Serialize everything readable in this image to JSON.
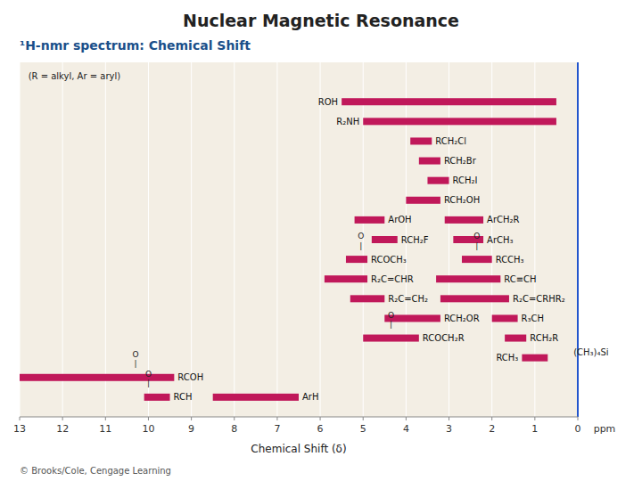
{
  "chart_data": {
    "type": "bar",
    "orientation": "horizontal",
    "title": "Nuclear Magnetic Resonance",
    "subtitle": "¹H-nmr spectrum: Chemical Shift",
    "xlabel": "Chemical Shift (δ)",
    "x_unit": "ppm",
    "source": "© Brooks/Cole, Cengage Learning",
    "color": "#c0185a",
    "grid": true,
    "xlim": [
      13,
      0
    ],
    "xticks": [
      0,
      1,
      2,
      3,
      4,
      5,
      6,
      7,
      8,
      9,
      10,
      11,
      12,
      13
    ],
    "ylim": [
      3,
      21
    ],
    "categories": [
      "ROH",
      "R₂NH",
      "RCH₂Cl",
      "RCH₂Br",
      "RCH₂I",
      "RCH₂OH",
      "ArOH",
      "RCH₂F",
      "ArCH₂R",
      "ArCH₃",
      "RCOCH₃",
      "RCCH₃",
      "R₂C=CHR",
      "RC≡CH",
      "R₂C=CH₂",
      "R₂C=CRHR₂",
      "RCH₂OR",
      "R₃CH",
      "RCOCH₂R",
      "RCH₂R",
      "RCH₃",
      "RCOH",
      "RCH",
      "ArH"
    ],
    "values": [
      [
        0.5,
        5.5
      ],
      [
        0.5,
        5.0
      ],
      [
        3.4,
        3.9
      ],
      [
        3.2,
        3.7
      ],
      [
        3.0,
        3.5
      ],
      [
        3.2,
        4.0
      ],
      [
        4.5,
        5.2
      ],
      [
        4.2,
        4.8
      ],
      [
        2.2,
        3.1
      ],
      [
        2.2,
        2.9
      ],
      [
        4.9,
        5.4
      ],
      [
        2.0,
        2.7
      ],
      [
        4.9,
        5.9
      ],
      [
        1.8,
        3.3
      ],
      [
        4.5,
        5.3
      ],
      [
        1.6,
        3.2
      ],
      [
        3.2,
        4.5
      ],
      [
        1.4,
        2.0
      ],
      [
        3.7,
        5.0
      ],
      [
        1.2,
        1.7
      ],
      [
        0.7,
        1.3
      ],
      [
        9.4,
        13.0
      ],
      [
        9.5,
        10.1
      ],
      [
        6.5,
        8.5
      ]
    ],
    "y": [
      19,
      18,
      17,
      16,
      15,
      14,
      13,
      12,
      13,
      12,
      11,
      11,
      10,
      10,
      9,
      9,
      8,
      8,
      7,
      7,
      6,
      5,
      4,
      4
    ],
    "vlines": [
      {
        "x": 0,
        "color": "#2255cc"
      }
    ],
    "annotations": [
      {
        "text": "(R = alkyl, Ar = aryl)",
        "x": 12.8,
        "y": 20.3
      },
      {
        "text": "(CH₃)₄Si",
        "x": 0.1,
        "y": 6.3
      },
      {
        "text": "O",
        "x": 10.3,
        "y": 5.95
      },
      {
        "text": "|",
        "x": 10.3,
        "y": 5.65
      },
      {
        "text": "O",
        "x": 10.0,
        "y": 4.95
      },
      {
        "text": "|",
        "x": 10.0,
        "y": 4.65
      },
      {
        "text": "O",
        "x": 5.05,
        "y": 11.95
      },
      {
        "text": "|",
        "x": 5.05,
        "y": 11.65
      },
      {
        "text": "O",
        "x": 2.35,
        "y": 11.95
      },
      {
        "text": "|",
        "x": 2.35,
        "y": 11.65
      },
      {
        "text": "O",
        "x": 4.35,
        "y": 7.95
      },
      {
        "text": "|",
        "x": 4.35,
        "y": 7.65
      }
    ]
  }
}
